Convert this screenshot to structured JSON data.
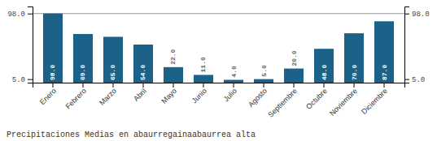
{
  "chart_data": {
    "type": "bar",
    "title": "Precipitaciones Medias en abaurregainaabaurrea alta",
    "categories": [
      "Enero",
      "Febrero",
      "Marzo",
      "Abril",
      "Mayo",
      "Junio",
      "Julio",
      "Agosto",
      "Septiembre",
      "Octubre",
      "Noviembre",
      "Diciembre"
    ],
    "values": [
      98.0,
      69.0,
      65.0,
      54.0,
      22.0,
      11.0,
      4.0,
      5.0,
      20.0,
      48.0,
      70.0,
      87.0
    ],
    "value_labels": [
      "98.0",
      "69.0",
      "65.0",
      "54.0",
      "22.0",
      "11.0",
      "4.0",
      "5.0",
      "20.0",
      "48.0",
      "70.0",
      "87.0"
    ],
    "data_labels": true,
    "color": "#1b6188",
    "ylim": [
      0,
      108
    ],
    "yticks": [
      {
        "value": 5,
        "label": "5.0"
      },
      {
        "value": 98,
        "label": "98.0"
      }
    ],
    "reference_line": 98
  }
}
